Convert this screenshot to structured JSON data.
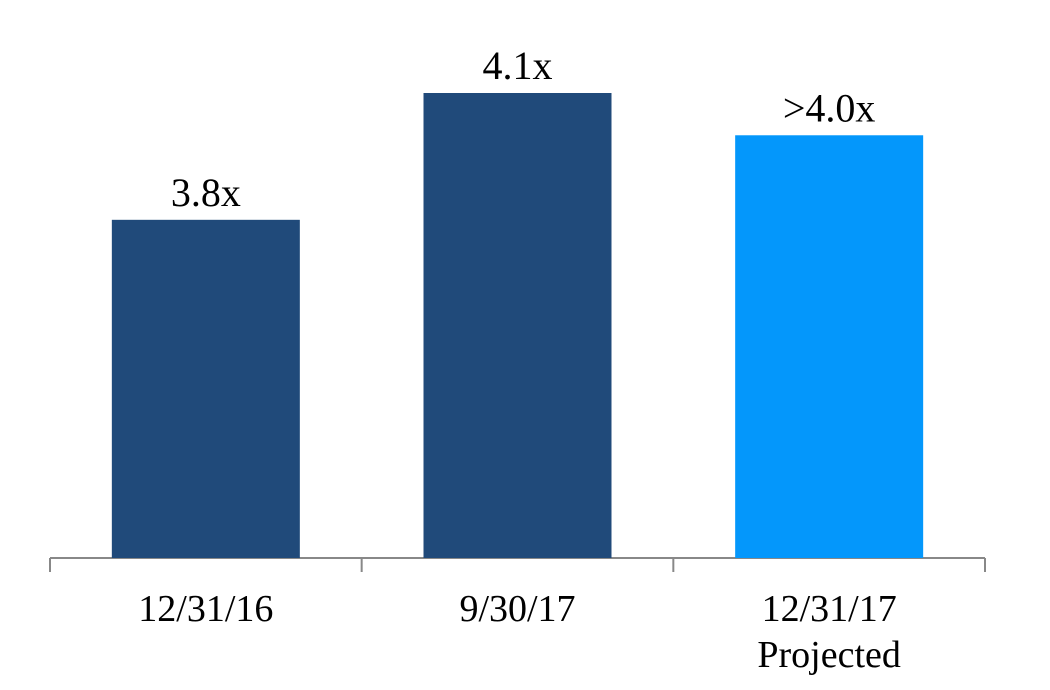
{
  "chart_data": {
    "type": "bar",
    "categories": [
      "12/31/16",
      "9/30/17",
      "12/31/17\nProjected"
    ],
    "values": [
      3.8,
      4.1,
      4.0
    ],
    "value_labels": [
      "3.8x",
      "4.1x",
      ">4.0x"
    ],
    "colors": [
      "#204a7a",
      "#204a7a",
      "#0497fb"
    ],
    "ylim": [
      3.0,
      4.32
    ]
  }
}
